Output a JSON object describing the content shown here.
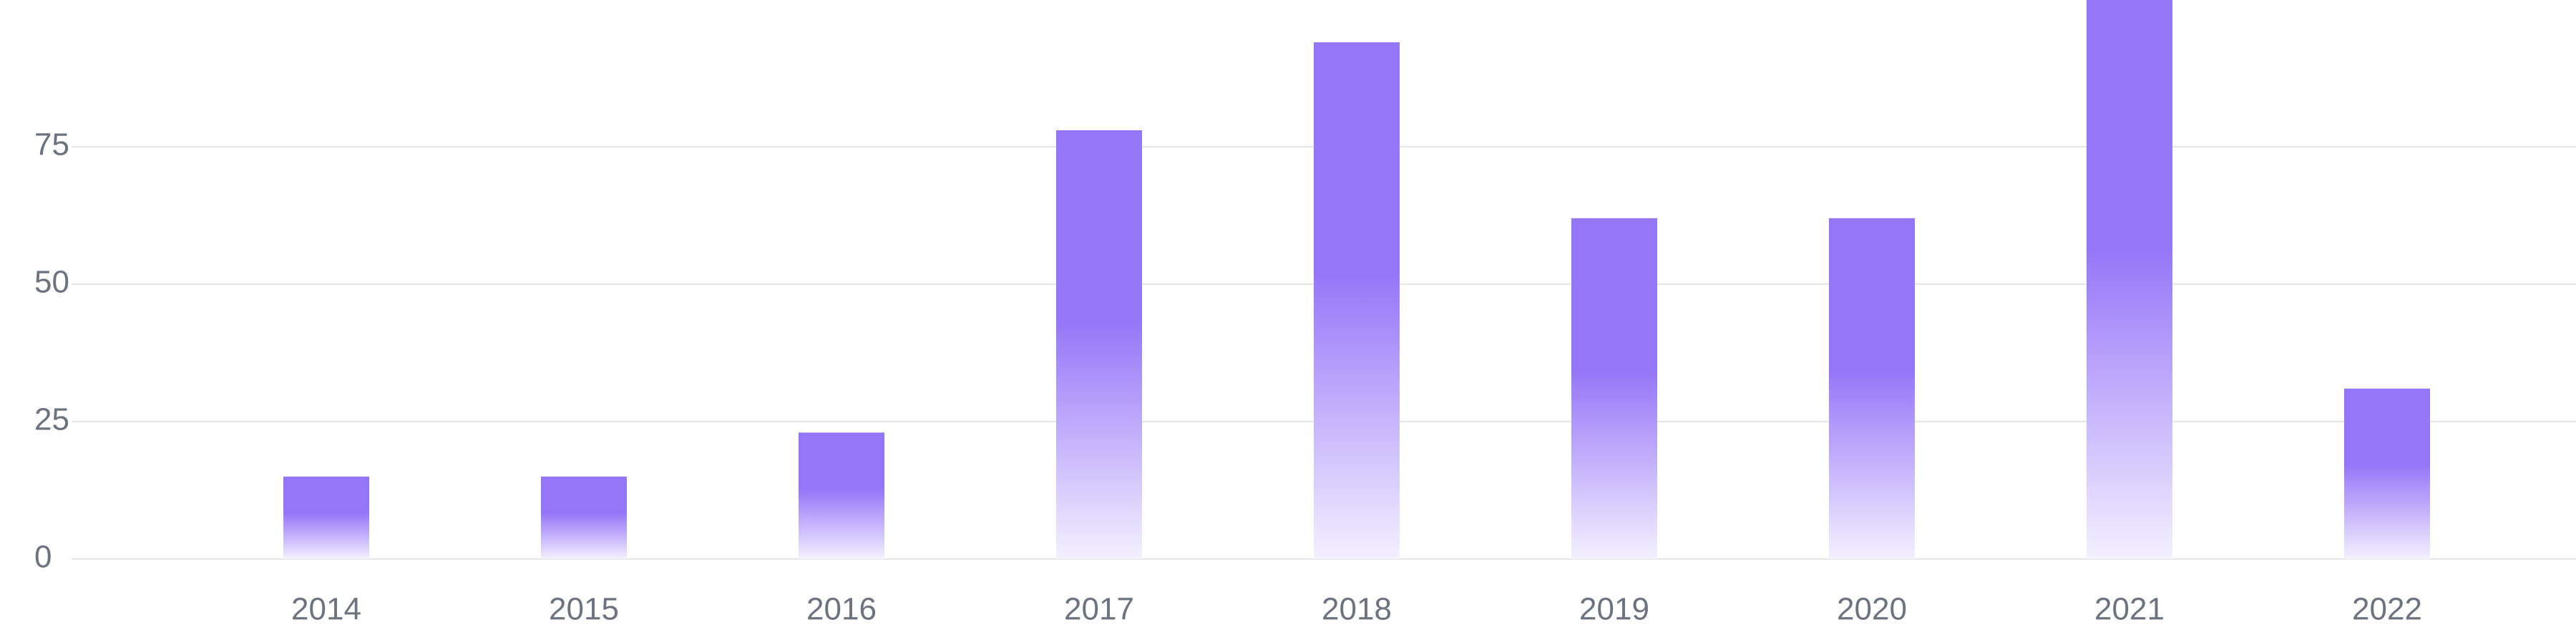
{
  "chart_data": {
    "type": "bar",
    "categories": [
      "2014",
      "2015",
      "2016",
      "2017",
      "2018",
      "2019",
      "2020",
      "2021",
      "2022"
    ],
    "values": [
      15,
      15,
      23,
      78,
      94,
      62,
      62,
      102,
      31
    ],
    "title": "",
    "xlabel": "",
    "ylabel": "",
    "ylim": [
      0,
      100
    ],
    "yticks": [
      "0",
      "25",
      "50",
      "75"
    ],
    "grid": true,
    "legend": "none",
    "colors": {
      "bar": "#9676f8",
      "bar_fade": "#f4f0ff",
      "grid": "#e5e7eb",
      "axis_text": "#6b7280"
    }
  }
}
